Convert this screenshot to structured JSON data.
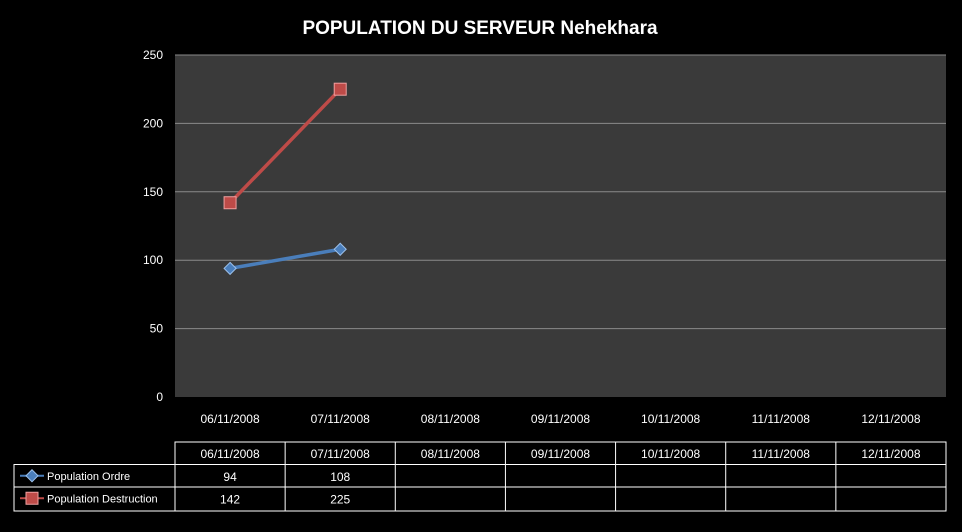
{
  "chart_data": {
    "type": "line",
    "title": "POPULATION DU SERVEUR Nehekhara",
    "xlabel": "",
    "ylabel": "",
    "categories": [
      "06/11/2008",
      "07/11/2008",
      "08/11/2008",
      "09/11/2008",
      "10/11/2008",
      "11/11/2008",
      "12/11/2008"
    ],
    "ylim": [
      0,
      250
    ],
    "yticks": [
      0,
      50,
      100,
      150,
      200,
      250
    ],
    "grid": true,
    "legend": "data-table",
    "series": [
      {
        "name": "Population Ordre",
        "values": [
          94,
          108,
          null,
          null,
          null,
          null,
          null
        ],
        "color": "#4a7ebb",
        "marker": "diamond"
      },
      {
        "name": "Population Destruction",
        "values": [
          142,
          225,
          null,
          null,
          null,
          null,
          null
        ],
        "color": "#be4b48",
        "marker": "square"
      }
    ],
    "data_table": {
      "rows": [
        [
          "94",
          "108",
          "",
          "",
          "",
          "",
          ""
        ],
        [
          "142",
          "225",
          "",
          "",
          "",
          "",
          ""
        ]
      ]
    }
  },
  "colors": {
    "background": "#000000",
    "plot_area": "#3a3a3a",
    "gridline": "#8a8a8a"
  }
}
